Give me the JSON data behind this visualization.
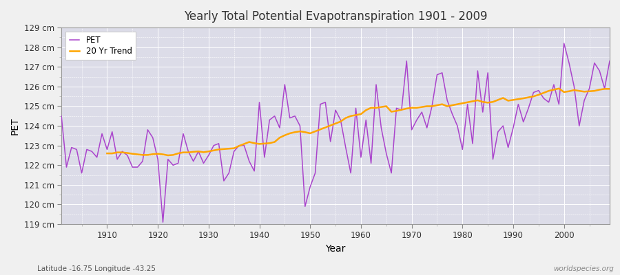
{
  "title": "Yearly Total Potential Evapotranspiration 1901 - 2009",
  "xlabel": "Year",
  "ylabel": "PET",
  "subtitle": "Latitude -16.75 Longitude -43.25",
  "watermark": "worldspecies.org",
  "pet_color": "#AA44CC",
  "trend_color": "#FFA500",
  "plot_bg_color": "#DCDCE8",
  "fig_bg_color": "#F0F0F0",
  "ylim": [
    119,
    129
  ],
  "yticks": [
    119,
    120,
    121,
    122,
    123,
    124,
    125,
    126,
    127,
    128,
    129
  ],
  "xlim": [
    1901,
    2009
  ],
  "xticks": [
    1910,
    1920,
    1930,
    1940,
    1950,
    1960,
    1970,
    1980,
    1990,
    2000
  ],
  "years": [
    1901,
    1902,
    1903,
    1904,
    1905,
    1906,
    1907,
    1908,
    1909,
    1910,
    1911,
    1912,
    1913,
    1914,
    1915,
    1916,
    1917,
    1918,
    1919,
    1920,
    1921,
    1922,
    1923,
    1924,
    1925,
    1926,
    1927,
    1928,
    1929,
    1930,
    1931,
    1932,
    1933,
    1934,
    1935,
    1936,
    1937,
    1938,
    1939,
    1940,
    1941,
    1942,
    1943,
    1944,
    1945,
    1946,
    1947,
    1948,
    1949,
    1950,
    1951,
    1952,
    1953,
    1954,
    1955,
    1956,
    1957,
    1958,
    1959,
    1960,
    1961,
    1962,
    1963,
    1964,
    1965,
    1966,
    1967,
    1968,
    1969,
    1970,
    1971,
    1972,
    1973,
    1974,
    1975,
    1976,
    1977,
    1978,
    1979,
    1980,
    1981,
    1982,
    1983,
    1984,
    1985,
    1986,
    1987,
    1988,
    1989,
    1990,
    1991,
    1992,
    1993,
    1994,
    1995,
    1996,
    1997,
    1998,
    1999,
    2000,
    2001,
    2002,
    2003,
    2004,
    2005,
    2006,
    2007,
    2008,
    2009
  ],
  "pet_values": [
    124.5,
    121.9,
    122.9,
    122.8,
    121.6,
    122.8,
    122.7,
    122.4,
    123.6,
    122.8,
    123.7,
    122.3,
    122.7,
    122.5,
    121.9,
    121.9,
    122.2,
    123.8,
    123.4,
    122.3,
    119.1,
    122.3,
    122.0,
    122.1,
    123.6,
    122.7,
    122.2,
    122.7,
    122.1,
    122.5,
    123.0,
    123.1,
    121.2,
    121.6,
    122.7,
    123.0,
    123.0,
    122.2,
    121.7,
    125.2,
    122.4,
    124.3,
    124.5,
    123.9,
    126.1,
    124.4,
    124.5,
    124.0,
    119.9,
    120.9,
    121.6,
    125.1,
    125.2,
    123.2,
    124.8,
    124.3,
    122.9,
    121.6,
    124.9,
    122.4,
    124.3,
    122.1,
    126.1,
    123.9,
    122.6,
    121.6,
    124.9,
    124.8,
    127.3,
    123.8,
    124.3,
    124.7,
    123.9,
    125.0,
    126.6,
    126.7,
    125.3,
    124.6,
    124.0,
    122.8,
    125.1,
    123.1,
    126.8,
    124.7,
    126.7,
    122.3,
    123.7,
    124.0,
    122.9,
    123.9,
    125.1,
    124.2,
    124.9,
    125.7,
    125.8,
    125.4,
    125.2,
    126.1,
    125.1,
    128.2,
    127.2,
    126.0,
    124.0,
    125.3,
    125.9,
    127.2,
    126.8,
    125.9,
    127.3
  ],
  "trend_values": [
    null,
    null,
    null,
    null,
    null,
    null,
    null,
    null,
    null,
    122.6,
    122.6,
    122.65,
    122.65,
    122.62,
    122.58,
    122.55,
    122.52,
    122.52,
    122.56,
    122.58,
    122.55,
    122.5,
    122.52,
    122.6,
    122.65,
    122.65,
    122.68,
    122.7,
    122.66,
    122.7,
    122.75,
    122.8,
    122.82,
    122.84,
    122.86,
    122.98,
    123.08,
    123.18,
    123.12,
    123.08,
    123.1,
    123.12,
    123.18,
    123.4,
    123.52,
    123.62,
    123.68,
    123.72,
    123.68,
    123.62,
    123.72,
    123.82,
    123.92,
    124.02,
    124.12,
    124.22,
    124.4,
    124.5,
    124.55,
    124.6,
    124.8,
    124.92,
    124.92,
    124.96,
    125.0,
    124.72,
    124.76,
    124.82,
    124.88,
    124.92,
    124.92,
    124.96,
    125.0,
    125.0,
    125.05,
    125.1,
    125.0,
    125.05,
    125.1,
    125.15,
    125.2,
    125.25,
    125.3,
    125.22,
    125.18,
    125.22,
    125.32,
    125.42,
    125.28,
    125.32,
    125.36,
    125.4,
    125.45,
    125.5,
    125.58,
    125.68,
    125.78,
    125.84,
    125.9,
    125.72,
    125.76,
    125.82,
    125.78,
    125.74,
    125.76,
    125.78,
    125.84,
    125.88,
    125.88
  ]
}
